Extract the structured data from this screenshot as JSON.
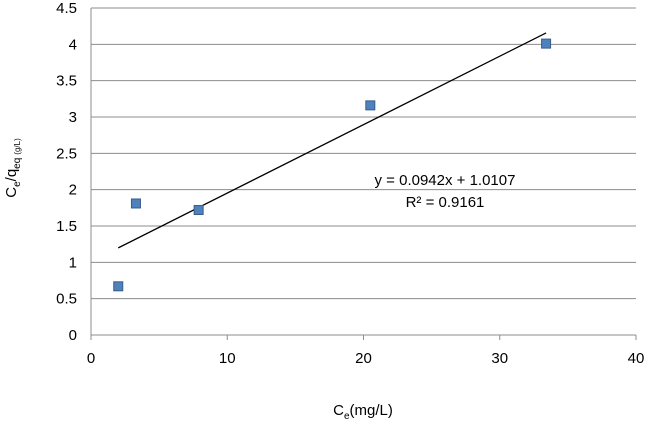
{
  "chart_data": {
    "type": "scatter",
    "x": [
      2.0,
      3.3,
      7.9,
      20.5,
      33.4
    ],
    "y": [
      0.67,
      1.81,
      1.72,
      3.16,
      4.01
    ],
    "xlim": [
      0,
      40
    ],
    "ylim": [
      0,
      4.5
    ],
    "x_ticks": [
      "0",
      "10",
      "20",
      "30",
      "40"
    ],
    "y_ticks": [
      "0",
      "0.5",
      "1",
      "1.5",
      "2",
      "2.5",
      "3",
      "3.5",
      "4",
      "4.5"
    ],
    "xlabel": {
      "main": "C",
      "sub": "e",
      "rest": "(mg/L)"
    },
    "ylabel": {
      "main": "C",
      "sub1": "e",
      "mid": "/q",
      "sub2": "eq",
      "sub3": "(g/L)"
    },
    "trendline": {
      "slope": 0.0942,
      "intercept": 1.0107,
      "x_start": 2.0,
      "x_end": 33.4
    },
    "equation": "y = 0.0942x + 1.0107",
    "r_squared": "R² = 0.9161",
    "grid": true,
    "legend": "none",
    "marker_color": "#4f81bd",
    "marker_border": "#385d8a",
    "gridline_color": "#8c8c8c",
    "trendline_color": "#000000"
  }
}
